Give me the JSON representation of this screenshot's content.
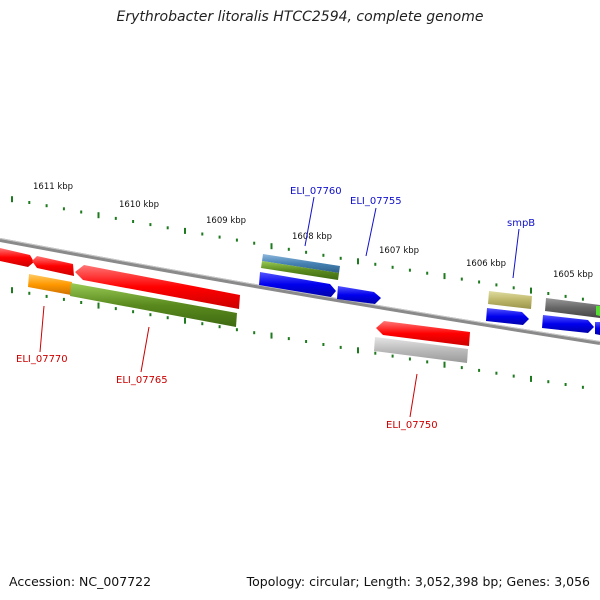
{
  "title": "Erythrobacter litoralis HTCC2594, complete genome",
  "footer": {
    "accession": "Accession: NC_007722",
    "topology": "Topology: circular; Length: 3,052,398 bp; Genes: 3,056"
  },
  "scale_labels": [
    "1611 kbp",
    "1610 kbp",
    "1609 kbp",
    "1608 kbp",
    "1607 kbp",
    "1606 kbp",
    "1605 kbp"
  ],
  "gene_labels": [
    "ELI_07760",
    "ELI_07755",
    "smpB",
    "ELI_07770",
    "ELI_07765",
    "ELI_07750"
  ],
  "colors": {
    "backbone": "#8a8a8a",
    "tick": "#1e7a1e",
    "label_blue": "#1010cc",
    "label_red": "#cc0000",
    "gene_red": "#ff0000",
    "gene_blue": "#0000ee",
    "gene_green": "#5a8a1e",
    "gene_orange": "#ff9900",
    "gene_khaki": "#bdb76b",
    "gene_gray": "#bbbbbb",
    "gene_steelblue": "#4682b4"
  }
}
